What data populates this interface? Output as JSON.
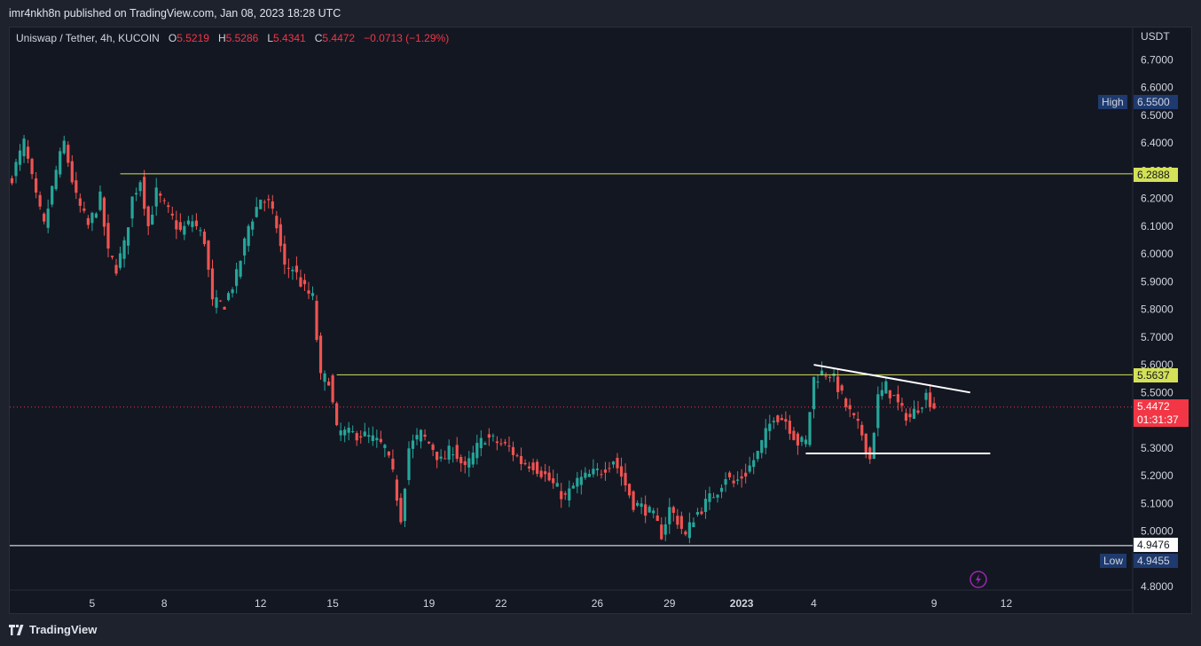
{
  "header": {
    "published": "imr4nkh8n published on TradingView.com, Jan 08, 2023 18:28 UTC"
  },
  "legend": {
    "symbol": "Uniswap / Tether, 4h, KUCOIN",
    "o_label": "O",
    "o_value": "5.5219",
    "h_label": "H",
    "h_value": "5.5286",
    "l_label": "L",
    "l_value": "5.4341",
    "c_label": "C",
    "c_value": "5.4472",
    "change": "−0.0713 (−1.29%)"
  },
  "price_axis": {
    "currency": "USDT"
  },
  "tags": {
    "high_label": "High",
    "high_value": "6.5500",
    "level_1": "6.2888",
    "level_2": "5.5637",
    "last_price": "5.4472",
    "countdown": "01:31:37",
    "level_3": "4.9476",
    "low_label": "Low",
    "low_value": "4.9455"
  },
  "footer": {
    "brand": "TradingView"
  },
  "colors": {
    "up": "#26a69a",
    "down": "#ef5350",
    "background": "#131722",
    "level_line": "#d4e157",
    "trend_line": "#ffffff",
    "last_price": "#f23645"
  },
  "chart_data": {
    "type": "candlestick",
    "title": "Uniswap / Tether, 4h, KUCOIN",
    "xlabel": "",
    "ylabel": "",
    "ylim": [
      4.75,
      6.8
    ],
    "y_ticks": [
      "6.7000",
      "6.6000",
      "6.5000",
      "6.4000",
      "6.3000",
      "6.2000",
      "6.1000",
      "6.0000",
      "5.9000",
      "5.8000",
      "5.7000",
      "5.6000",
      "5.5000",
      "5.4000",
      "5.3000",
      "5.2000",
      "5.1000",
      "5.0000",
      "4.9000",
      "4.8000"
    ],
    "x_ticks": [
      {
        "label": "5",
        "bar": 20
      },
      {
        "label": "8",
        "bar": 38
      },
      {
        "label": "12",
        "bar": 62
      },
      {
        "label": "15",
        "bar": 80
      },
      {
        "label": "19",
        "bar": 104
      },
      {
        "label": "22",
        "bar": 122
      },
      {
        "label": "26",
        "bar": 146
      },
      {
        "label": "29",
        "bar": 164
      },
      {
        "label": "2023",
        "bar": 182
      },
      {
        "label": "4",
        "bar": 200
      },
      {
        "label": "9",
        "bar": 230
      },
      {
        "label": "12",
        "bar": 248
      }
    ],
    "horizontal_levels": [
      {
        "price": 6.2888,
        "from_bar": 27,
        "color": "#d4e157"
      },
      {
        "price": 5.5637,
        "from_bar": 81,
        "color": "#d4e157"
      },
      {
        "price": 4.9476,
        "from_bar": 0,
        "color": "#ffffff"
      }
    ],
    "trend_lines": [
      {
        "from_bar": 200,
        "from_price": 5.6,
        "to_bar": 239,
        "to_price": 5.5
      },
      {
        "from_bar": 198,
        "from_price": 5.28,
        "to_bar": 244,
        "to_price": 5.28
      }
    ],
    "annotations": [
      "High 6.5500",
      "Low 4.9455",
      "last 5.4472"
    ],
    "anchors": [
      [
        0,
        6.28
      ],
      [
        3,
        6.4
      ],
      [
        6,
        6.2
      ],
      [
        8,
        6.1
      ],
      [
        11,
        6.3
      ],
      [
        13,
        6.4
      ],
      [
        16,
        6.2
      ],
      [
        19,
        6.1
      ],
      [
        22,
        6.2
      ],
      [
        24,
        6.0
      ],
      [
        26,
        5.95
      ],
      [
        28,
        6.03
      ],
      [
        30,
        6.2
      ],
      [
        32,
        6.27
      ],
      [
        34,
        6.1
      ],
      [
        36,
        6.22
      ],
      [
        39,
        6.15
      ],
      [
        42,
        6.08
      ],
      [
        45,
        6.12
      ],
      [
        48,
        6.05
      ],
      [
        50,
        5.82
      ],
      [
        53,
        5.82
      ],
      [
        56,
        5.92
      ],
      [
        59,
        6.1
      ],
      [
        62,
        6.2
      ],
      [
        64,
        6.18
      ],
      [
        66,
        6.1
      ],
      [
        68,
        5.95
      ],
      [
        70,
        5.95
      ],
      [
        73,
        5.87
      ],
      [
        75,
        5.84
      ],
      [
        77,
        5.55
      ],
      [
        79,
        5.55
      ],
      [
        81,
        5.36
      ],
      [
        84,
        5.35
      ],
      [
        87,
        5.35
      ],
      [
        90,
        5.33
      ],
      [
        93,
        5.3
      ],
      [
        95,
        5.2
      ],
      [
        97,
        5.05
      ],
      [
        99,
        5.3
      ],
      [
        102,
        5.35
      ],
      [
        105,
        5.3
      ],
      [
        107,
        5.25
      ],
      [
        110,
        5.3
      ],
      [
        113,
        5.22
      ],
      [
        116,
        5.3
      ],
      [
        118,
        5.34
      ],
      [
        121,
        5.32
      ],
      [
        124,
        5.3
      ],
      [
        127,
        5.25
      ],
      [
        130,
        5.24
      ],
      [
        133,
        5.2
      ],
      [
        136,
        5.15
      ],
      [
        138,
        5.12
      ],
      [
        141,
        5.18
      ],
      [
        144,
        5.2
      ],
      [
        147,
        5.22
      ],
      [
        150,
        5.26
      ],
      [
        152,
        5.2
      ],
      [
        155,
        5.1
      ],
      [
        158,
        5.08
      ],
      [
        160,
        5.05
      ],
      [
        162,
        4.99
      ],
      [
        164,
        5.08
      ],
      [
        166,
        5.04
      ],
      [
        168,
        4.98
      ],
      [
        170,
        5.05
      ],
      [
        173,
        5.1
      ],
      [
        176,
        5.15
      ],
      [
        178,
        5.2
      ],
      [
        180,
        5.17
      ],
      [
        183,
        5.21
      ],
      [
        186,
        5.28
      ],
      [
        188,
        5.35
      ],
      [
        190,
        5.42
      ],
      [
        193,
        5.4
      ],
      [
        196,
        5.32
      ],
      [
        198,
        5.32
      ],
      [
        200,
        5.55
      ],
      [
        202,
        5.57
      ],
      [
        204,
        5.57
      ],
      [
        206,
        5.52
      ],
      [
        208,
        5.45
      ],
      [
        210,
        5.4
      ],
      [
        212,
        5.35
      ],
      [
        214,
        5.26
      ],
      [
        216,
        5.48
      ],
      [
        218,
        5.52
      ],
      [
        220,
        5.48
      ],
      [
        222,
        5.43
      ],
      [
        224,
        5.41
      ],
      [
        226,
        5.45
      ],
      [
        228,
        5.49
      ],
      [
        230,
        5.45
      ]
    ]
  }
}
